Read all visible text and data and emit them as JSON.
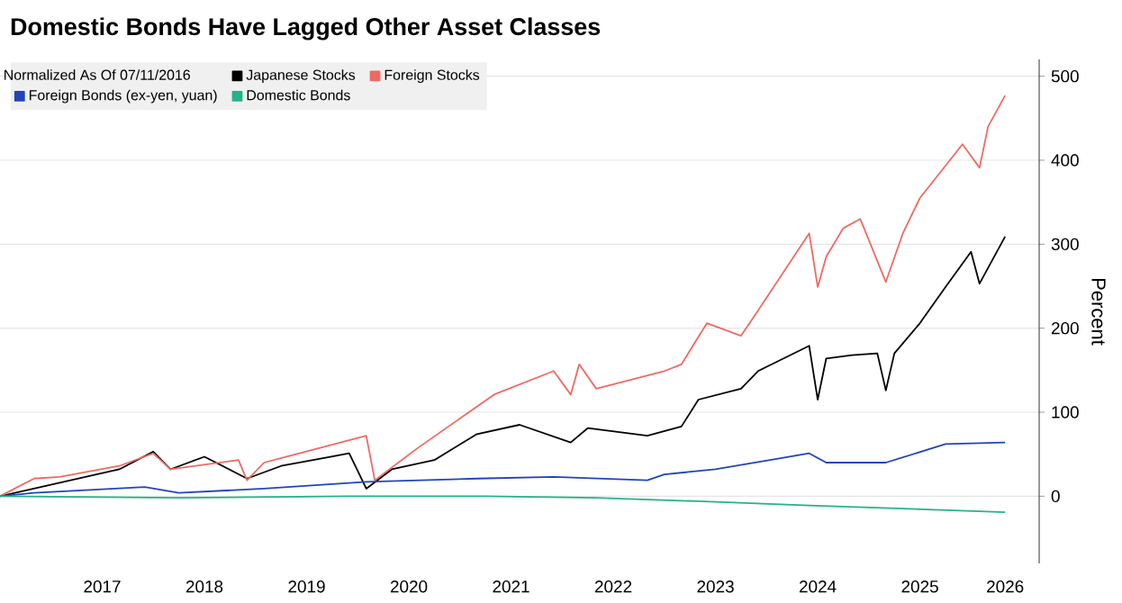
{
  "chart_data": {
    "type": "line",
    "title": "Domestic Bonds Have Lagged Other Asset Classes",
    "ylabel": "Percent",
    "legend_title": "Normalized As Of 07/11/2016",
    "series": [
      {
        "name": "Japanese Stocks",
        "color": "#000000",
        "x": [
          "2016-07",
          "2017-09",
          "2018-01",
          "2018-03",
          "2018-07",
          "2018-12",
          "2019-04",
          "2019-12",
          "2020-02",
          "2020-05",
          "2020-10",
          "2021-03",
          "2021-08",
          "2022-02",
          "2022-04",
          "2022-11",
          "2023-03",
          "2023-05",
          "2023-10",
          "2023-12",
          "2024-06",
          "2024-07",
          "2024-08",
          "2024-11",
          "2025-02",
          "2025-03",
          "2025-04",
          "2025-07",
          "2025-10",
          "2026-01",
          "2026-02",
          "2026-05"
        ],
        "values": [
          0,
          32,
          53,
          32,
          47,
          21,
          36,
          51,
          9,
          32,
          43,
          74,
          85,
          64,
          81,
          72,
          83,
          115,
          128,
          149,
          179,
          115,
          164,
          168,
          170,
          126,
          170,
          206,
          249,
          291,
          253,
          309
        ]
      },
      {
        "name": "Foreign Stocks",
        "color": "#ef6a62",
        "x": [
          "2016-07",
          "2016-11",
          "2017-02",
          "2017-09",
          "2018-01",
          "2018-03",
          "2018-11",
          "2018-12",
          "2019-02",
          "2020-02",
          "2020-03",
          "2020-08",
          "2021-05",
          "2021-12",
          "2022-02",
          "2022-03",
          "2022-05",
          "2023-01",
          "2023-03",
          "2023-06",
          "2023-10",
          "2023-12",
          "2024-06",
          "2024-07",
          "2024-08",
          "2024-10",
          "2024-12",
          "2025-03",
          "2025-05",
          "2025-07",
          "2025-12",
          "2026-02",
          "2026-03",
          "2026-05"
        ],
        "values": [
          0,
          21,
          23,
          36,
          51,
          32,
          43,
          19,
          40,
          72,
          19,
          57,
          121,
          149,
          121,
          157,
          128,
          149,
          157,
          206,
          191,
          221,
          313,
          249,
          285,
          319,
          330,
          255,
          313,
          355,
          419,
          391,
          440,
          477
        ]
      },
      {
        "name": "Foreign Bonds (ex-yen, yuan)",
        "color": "#2244bb",
        "x": [
          "2016-07",
          "2016-11",
          "2017-12",
          "2018-04",
          "2019-02",
          "2020-02",
          "2021-03",
          "2021-12",
          "2022-11",
          "2023-01",
          "2023-07",
          "2024-06",
          "2024-08",
          "2025-03",
          "2025-10",
          "2026-05"
        ],
        "values": [
          0,
          4,
          11,
          4,
          9,
          17,
          21,
          23,
          19,
          26,
          32,
          51,
          40,
          40,
          62,
          64
        ]
      },
      {
        "name": "Domestic Bonds",
        "color": "#22b38a",
        "x": [
          "2016-07",
          "2018-04",
          "2019-12",
          "2021-04",
          "2022-05",
          "2023-05",
          "2024-06",
          "2026-05"
        ],
        "values": [
          0,
          -2,
          0,
          0,
          -2,
          -6,
          -11,
          -19
        ]
      }
    ],
    "xlim": [
      "2016-07",
      "2026-09"
    ],
    "ylim": [
      -80,
      520
    ],
    "xticks": [
      {
        "value": "2017-07",
        "label": "2017"
      },
      {
        "value": "2018-07",
        "label": "2018"
      },
      {
        "value": "2019-07",
        "label": "2019"
      },
      {
        "value": "2020-07",
        "label": "2020"
      },
      {
        "value": "2021-07",
        "label": "2021"
      },
      {
        "value": "2022-07",
        "label": "2022"
      },
      {
        "value": "2023-07",
        "label": "2023"
      },
      {
        "value": "2024-07",
        "label": "2024"
      },
      {
        "value": "2025-07",
        "label": "2025"
      },
      {
        "value": "2026-05",
        "label": "2026"
      }
    ],
    "yticks": [
      0,
      100,
      200,
      300,
      400,
      500
    ],
    "grid": "y",
    "legend": "top left",
    "marker": "none",
    "line_style": "solid"
  }
}
